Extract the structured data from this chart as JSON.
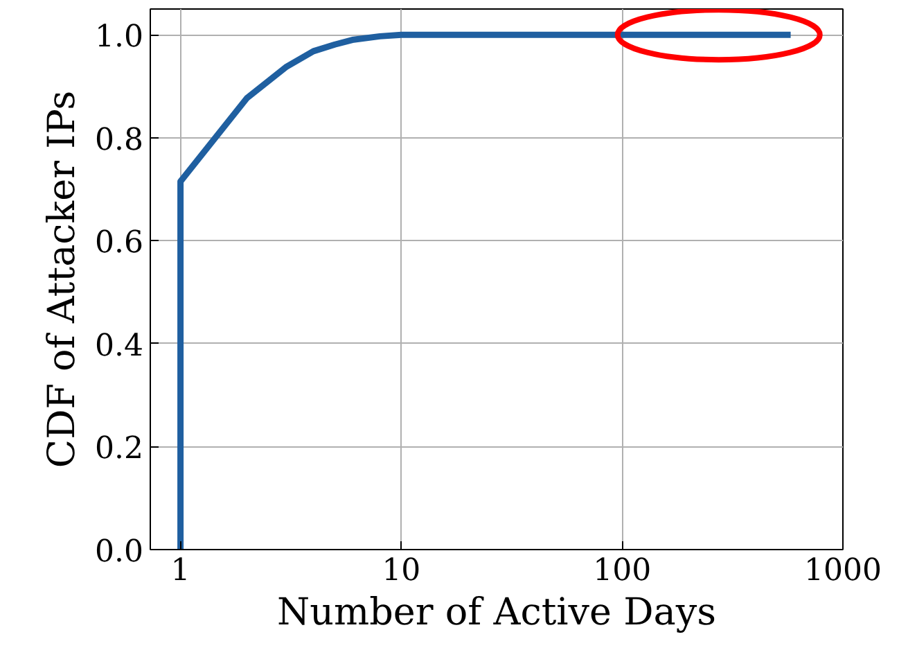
{
  "chart_data": {
    "type": "line",
    "xlabel": "Number of Active Days",
    "ylabel": "CDF of Attacker IPs",
    "x": [
      1,
      1,
      2,
      3,
      4,
      5,
      6,
      8,
      10,
      580
    ],
    "series": [
      {
        "color": "#1f5fa0",
        "values": [
          0,
          0.715,
          0.877,
          0.937,
          0.968,
          0.981,
          0.99,
          0.997,
          1.0,
          1.0
        ]
      }
    ],
    "log": "x",
    "xlim": [
      0.73,
      1000
    ],
    "xticks": [
      1,
      10,
      100,
      1000
    ],
    "ylim": [
      0,
      1.05
    ],
    "yticks": [
      {
        "value": 0,
        "label": "0.0"
      },
      0.2,
      0.4,
      0.6,
      0.8,
      {
        "value": 1,
        "label": "1.0"
      }
    ],
    "grid": true,
    "marker": "none",
    "line_style": "solid"
  }
}
